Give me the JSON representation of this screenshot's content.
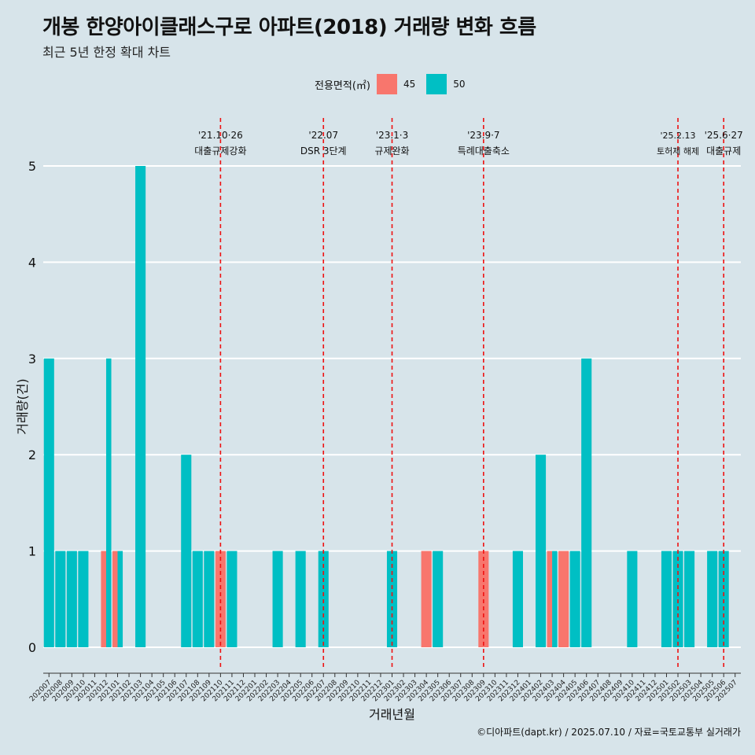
{
  "title": "개봉 한양아이클래스구로 아파트(2018) 거래량 변화 흐름",
  "subtitle": "최근 5년 한정 확대 차트",
  "caption": "©디아파트(dapt.kr) / 2025.07.10 / 자료=국토교통부 실거래가",
  "legend": {
    "title": "전용면적(㎡)",
    "items": [
      {
        "label": "45",
        "color": "#f8766d"
      },
      {
        "label": "50",
        "color": "#00bfc4"
      }
    ]
  },
  "chart_data": {
    "type": "bar",
    "xlabel": "거래년월",
    "ylabel": "거래량(건)",
    "ylim": [
      0,
      5
    ],
    "yticks": [
      0,
      1,
      2,
      3,
      4,
      5
    ],
    "grid": true,
    "legend_position": "top",
    "categories": [
      "202007",
      "202008",
      "202009",
      "202010",
      "202011",
      "202012",
      "202101",
      "202102",
      "202103",
      "202104",
      "202105",
      "202106",
      "202107",
      "202108",
      "202109",
      "202110",
      "202111",
      "202112",
      "202201",
      "202202",
      "202203",
      "202204",
      "202205",
      "202206",
      "202207",
      "202208",
      "202209",
      "202210",
      "202211",
      "202212",
      "202301",
      "202302",
      "202303",
      "202304",
      "202305",
      "202306",
      "202307",
      "202308",
      "202309",
      "202310",
      "202311",
      "202312",
      "202401",
      "202402",
      "202403",
      "202404",
      "202405",
      "202406",
      "202407",
      "202408",
      "202409",
      "202410",
      "202411",
      "202412",
      "202501",
      "202502",
      "202503",
      "202504",
      "202505",
      "202506",
      "202507"
    ],
    "series": [
      {
        "name": "45",
        "color": "#f8766d",
        "values": [
          0,
          0,
          0,
          0,
          0,
          1,
          1,
          0,
          0,
          0,
          0,
          0,
          0,
          0,
          0,
          1,
          0,
          0,
          0,
          0,
          0,
          0,
          0,
          0,
          0,
          0,
          0,
          0,
          0,
          0,
          0,
          0,
          0,
          1,
          0,
          0,
          0,
          0,
          1,
          0,
          0,
          0,
          0,
          0,
          1,
          1,
          0,
          0,
          0,
          0,
          0,
          0,
          0,
          0,
          0,
          0,
          0,
          0,
          0,
          0,
          0
        ]
      },
      {
        "name": "50",
        "color": "#00bfc4",
        "values": [
          3,
          1,
          1,
          1,
          0,
          3,
          1,
          0,
          5,
          0,
          0,
          0,
          2,
          1,
          1,
          0,
          1,
          0,
          0,
          0,
          1,
          0,
          1,
          0,
          1,
          0,
          0,
          0,
          0,
          0,
          1,
          0,
          0,
          0,
          1,
          0,
          0,
          0,
          0,
          0,
          0,
          1,
          0,
          2,
          1,
          0,
          1,
          3,
          0,
          0,
          0,
          1,
          0,
          0,
          1,
          1,
          1,
          0,
          1,
          1,
          0
        ]
      }
    ],
    "events": [
      {
        "category": "202110",
        "date": "'21.10·26",
        "label": "대출규제강화"
      },
      {
        "category": "202207",
        "date": "'22.07",
        "label": "DSR 3단계"
      },
      {
        "category": "202301",
        "date": "'23.1·3",
        "label": "규제완화"
      },
      {
        "category": "202309",
        "date": "'23.9·7",
        "label": "특례대출축소"
      },
      {
        "category": "202502",
        "date": "'25.2.13",
        "label": "토허제 해제"
      },
      {
        "category": "202506",
        "date": "'25.6·27",
        "label": "대출규제"
      }
    ]
  }
}
